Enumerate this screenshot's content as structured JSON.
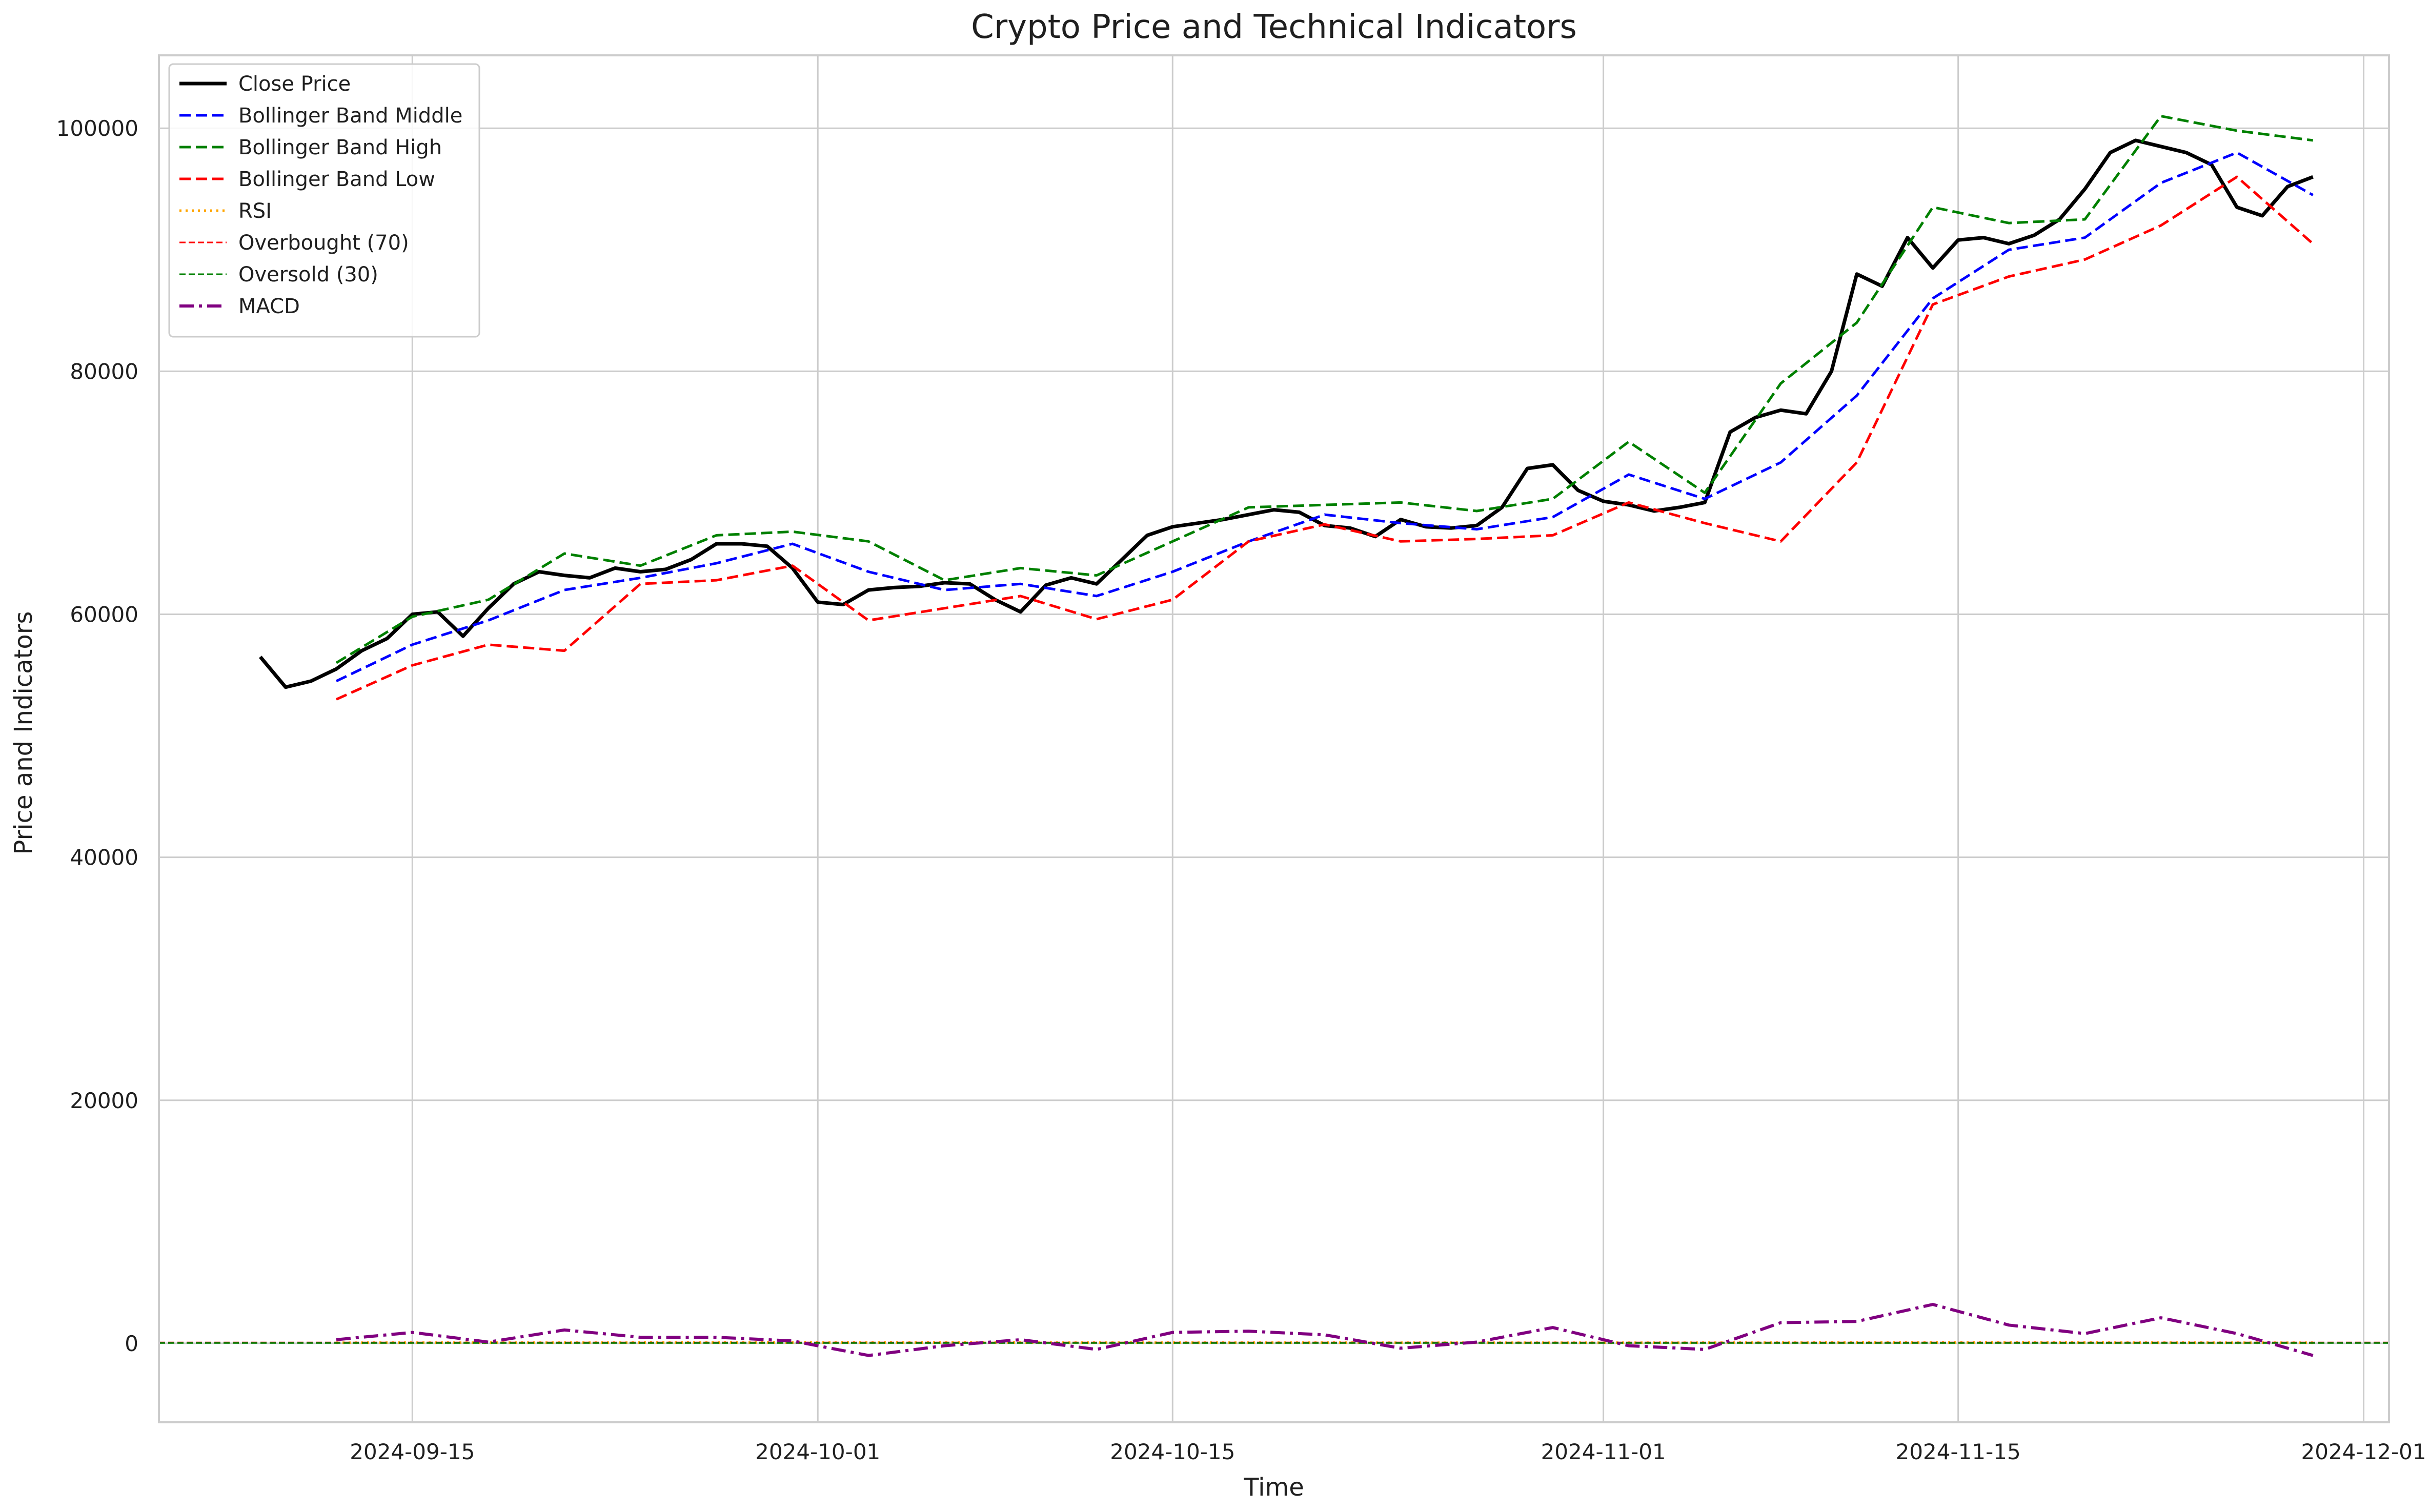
{
  "chart_data": {
    "type": "line",
    "title": "Crypto Price and Technical Indicators",
    "xlabel": "Time",
    "ylabel": "Price and Indicators",
    "xlim": [
      "2024-09-05",
      "2024-12-02"
    ],
    "ylim": [
      -6500,
      106000
    ],
    "x_ticks": [
      "2024-09-15",
      "2024-10-01",
      "2024-10-15",
      "2024-11-01",
      "2024-11-15",
      "2024-12-01"
    ],
    "y_ticks": [
      0,
      20000,
      40000,
      60000,
      80000,
      100000
    ],
    "grid": true,
    "legend_position": "top-left",
    "series": [
      {
        "name": "Close Price",
        "color": "#000000",
        "style": "solid",
        "x": [
          "2024-09-09",
          "2024-09-10",
          "2024-09-11",
          "2024-09-12",
          "2024-09-13",
          "2024-09-14",
          "2024-09-15",
          "2024-09-16",
          "2024-09-17",
          "2024-09-18",
          "2024-09-19",
          "2024-09-20",
          "2024-09-21",
          "2024-09-22",
          "2024-09-23",
          "2024-09-24",
          "2024-09-25",
          "2024-09-26",
          "2024-09-27",
          "2024-09-28",
          "2024-09-29",
          "2024-09-30",
          "2024-10-01",
          "2024-10-02",
          "2024-10-03",
          "2024-10-04",
          "2024-10-05",
          "2024-10-06",
          "2024-10-07",
          "2024-10-08",
          "2024-10-09",
          "2024-10-10",
          "2024-10-11",
          "2024-10-12",
          "2024-10-13",
          "2024-10-14",
          "2024-10-15",
          "2024-10-16",
          "2024-10-17",
          "2024-10-18",
          "2024-10-19",
          "2024-10-20",
          "2024-10-21",
          "2024-10-22",
          "2024-10-23",
          "2024-10-24",
          "2024-10-25",
          "2024-10-26",
          "2024-10-27",
          "2024-10-28",
          "2024-10-29",
          "2024-10-30",
          "2024-10-31",
          "2024-11-01",
          "2024-11-02",
          "2024-11-03",
          "2024-11-04",
          "2024-11-05",
          "2024-11-06",
          "2024-11-07",
          "2024-11-08",
          "2024-11-09",
          "2024-11-10",
          "2024-11-11",
          "2024-11-12",
          "2024-11-13",
          "2024-11-14",
          "2024-11-15",
          "2024-11-16",
          "2024-11-17",
          "2024-11-18",
          "2024-11-19",
          "2024-11-20",
          "2024-11-21",
          "2024-11-22",
          "2024-11-23",
          "2024-11-24",
          "2024-11-25",
          "2024-11-26",
          "2024-11-27",
          "2024-11-28",
          "2024-11-29"
        ],
        "y": [
          56500,
          54000,
          54500,
          55500,
          57000,
          58000,
          60000,
          60200,
          58200,
          60500,
          62500,
          63500,
          63200,
          63000,
          63800,
          63500,
          63700,
          64500,
          65800,
          65800,
          65600,
          63800,
          61000,
          60800,
          62000,
          62200,
          62300,
          62600,
          62500,
          61200,
          60200,
          62400,
          63000,
          62500,
          64500,
          66500,
          67200,
          67500,
          67800,
          68200,
          68600,
          68400,
          67300,
          67100,
          66400,
          67800,
          67200,
          67100,
          67300,
          68800,
          72000,
          72300,
          70200,
          69300,
          69000,
          68500,
          68800,
          69200,
          75000,
          76200,
          76800,
          76500,
          80000,
          88000,
          87000,
          91000,
          88500,
          90800,
          91000,
          90500,
          91200,
          92500,
          95000,
          98000,
          99000,
          98500,
          98000,
          97000,
          93500,
          92800,
          95200,
          96000
        ]
      },
      {
        "name": "Bollinger Band Middle",
        "color": "#0000ff",
        "style": "dashed",
        "x": [
          "2024-09-12",
          "2024-09-15",
          "2024-09-18",
          "2024-09-21",
          "2024-09-24",
          "2024-09-27",
          "2024-09-30",
          "2024-10-03",
          "2024-10-06",
          "2024-10-09",
          "2024-10-12",
          "2024-10-15",
          "2024-10-18",
          "2024-10-21",
          "2024-10-24",
          "2024-10-27",
          "2024-10-30",
          "2024-11-02",
          "2024-11-05",
          "2024-11-08",
          "2024-11-11",
          "2024-11-14",
          "2024-11-17",
          "2024-11-20",
          "2024-11-23",
          "2024-11-26",
          "2024-11-29"
        ],
        "y": [
          54500,
          57500,
          59500,
          62000,
          63000,
          64200,
          65800,
          63500,
          62000,
          62500,
          61500,
          63500,
          66000,
          68200,
          67500,
          67000,
          68000,
          71500,
          69500,
          72500,
          78000,
          86000,
          90000,
          91000,
          95500,
          98000,
          94500
        ]
      },
      {
        "name": "Bollinger Band High",
        "color": "#008000",
        "style": "dashed",
        "x": [
          "2024-09-12",
          "2024-09-15",
          "2024-09-18",
          "2024-09-21",
          "2024-09-24",
          "2024-09-27",
          "2024-09-30",
          "2024-10-03",
          "2024-10-06",
          "2024-10-09",
          "2024-10-12",
          "2024-10-15",
          "2024-10-18",
          "2024-10-21",
          "2024-10-24",
          "2024-10-27",
          "2024-10-30",
          "2024-11-02",
          "2024-11-05",
          "2024-11-08",
          "2024-11-11",
          "2024-11-14",
          "2024-11-17",
          "2024-11-20",
          "2024-11-23",
          "2024-11-26",
          "2024-11-29"
        ],
        "y": [
          56000,
          59800,
          61200,
          65000,
          64000,
          66500,
          66800,
          66000,
          62800,
          63800,
          63200,
          66000,
          68800,
          69000,
          69200,
          68500,
          69500,
          74200,
          70000,
          79000,
          84000,
          93500,
          92200,
          92500,
          101000,
          99800,
          99000
        ]
      },
      {
        "name": "Bollinger Band Low",
        "color": "#ff0000",
        "style": "dashed",
        "x": [
          "2024-09-12",
          "2024-09-15",
          "2024-09-18",
          "2024-09-21",
          "2024-09-24",
          "2024-09-27",
          "2024-09-30",
          "2024-10-03",
          "2024-10-06",
          "2024-10-09",
          "2024-10-12",
          "2024-10-15",
          "2024-10-18",
          "2024-10-21",
          "2024-10-24",
          "2024-10-27",
          "2024-10-30",
          "2024-11-02",
          "2024-11-05",
          "2024-11-08",
          "2024-11-11",
          "2024-11-14",
          "2024-11-17",
          "2024-11-20",
          "2024-11-23",
          "2024-11-26",
          "2024-11-29"
        ],
        "y": [
          53000,
          55800,
          57500,
          57000,
          62500,
          62800,
          64000,
          59500,
          60500,
          61500,
          59600,
          61200,
          66000,
          67400,
          66000,
          66200,
          66500,
          69200,
          67500,
          66000,
          72500,
          85500,
          87800,
          89200,
          92000,
          96000,
          90500
        ]
      },
      {
        "name": "RSI",
        "color": "#ffa500",
        "style": "dotted",
        "x": [
          "2024-09-12",
          "2024-09-29",
          "2024-10-15",
          "2024-11-01",
          "2024-11-15",
          "2024-11-29"
        ],
        "y": [
          52,
          60,
          55,
          48,
          62,
          45
        ]
      },
      {
        "name": "Overbought (70)",
        "color": "#ff0000",
        "style": "dashed-thin",
        "constant": 70
      },
      {
        "name": "Oversold (30)",
        "color": "#008000",
        "style": "dashed-thin",
        "constant": 30
      },
      {
        "name": "MACD",
        "color": "#800080",
        "style": "dashdot",
        "x": [
          "2024-09-12",
          "2024-09-15",
          "2024-09-18",
          "2024-09-21",
          "2024-09-24",
          "2024-09-27",
          "2024-09-30",
          "2024-10-03",
          "2024-10-06",
          "2024-10-09",
          "2024-10-12",
          "2024-10-15",
          "2024-10-18",
          "2024-10-21",
          "2024-10-24",
          "2024-10-27",
          "2024-10-30",
          "2024-11-02",
          "2024-11-05",
          "2024-11-08",
          "2024-11-11",
          "2024-11-14",
          "2024-11-17",
          "2024-11-20",
          "2024-11-23",
          "2024-11-26",
          "2024-11-29"
        ],
        "y": [
          300,
          900,
          100,
          1100,
          500,
          500,
          200,
          -1000,
          -200,
          300,
          -500,
          900,
          1000,
          700,
          -400,
          100,
          1300,
          -200,
          -500,
          1700,
          1800,
          3200,
          1500,
          800,
          2100,
          800,
          -1000
        ]
      }
    ]
  }
}
